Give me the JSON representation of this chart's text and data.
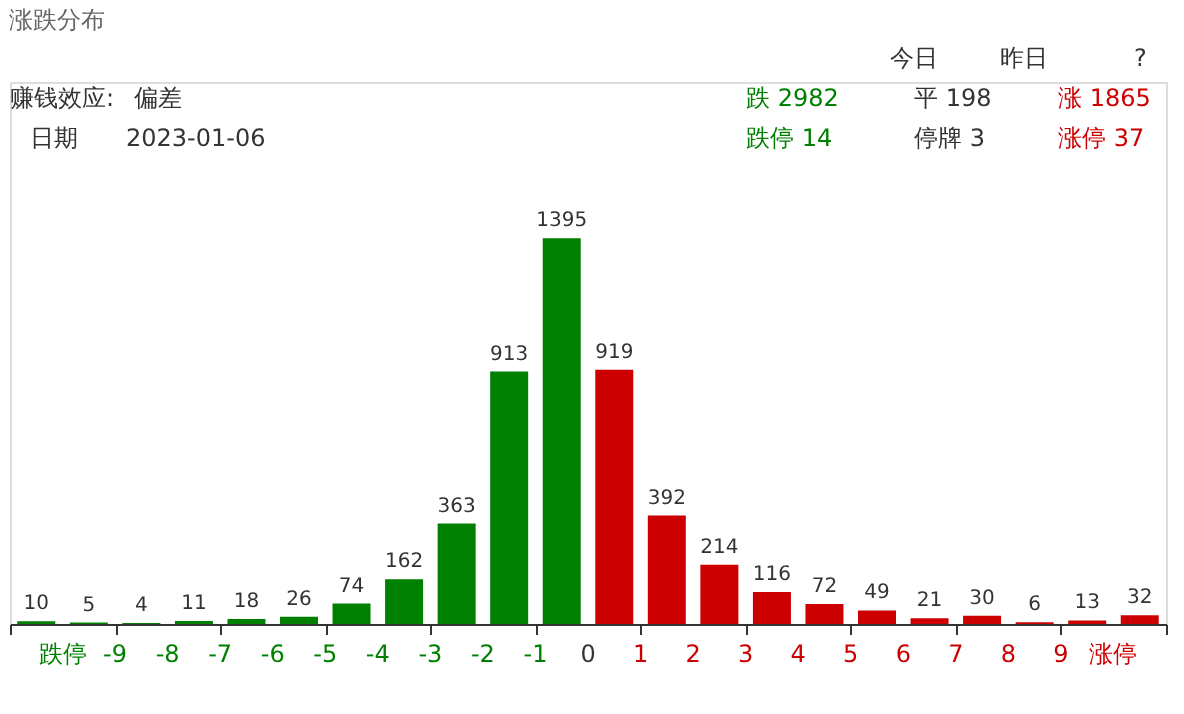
{
  "chart_data": {
    "type": "bar",
    "title": "涨跌分布",
    "annotations": [
      "今日",
      "昨日",
      "?",
      "赚钱效应:",
      "偏差",
      "日期",
      "2023-01-06",
      "跌 2982",
      "平 198",
      "涨 1865",
      "跌停 14",
      "停牌 3",
      "涨停 37"
    ],
    "x": [
      -10.5,
      -9.5,
      -8.5,
      -7.5,
      -6.5,
      -5.5,
      -4.5,
      -3.5,
      -2.5,
      -1.5,
      -0.5,
      0.5,
      1.5,
      2.5,
      3.5,
      4.5,
      5.5,
      6.5,
      7.5,
      8.5,
      9.5,
      10.5
    ],
    "values": [
      10,
      5,
      4,
      11,
      18,
      26,
      74,
      162,
      363,
      913,
      1395,
      919,
      392,
      214,
      116,
      72,
      49,
      21,
      30,
      6,
      13,
      32
    ],
    "colors": [
      "#008000",
      "#008000",
      "#008000",
      "#008000",
      "#008000",
      "#008000",
      "#008000",
      "#008000",
      "#008000",
      "#008000",
      "#008000",
      "#cc0000",
      "#cc0000",
      "#cc0000",
      "#cc0000",
      "#cc0000",
      "#cc0000",
      "#cc0000",
      "#cc0000",
      "#cc0000",
      "#cc0000",
      "#cc0000"
    ],
    "data_labels": true,
    "xlim": [
      -11,
      11
    ],
    "xticks": [
      {
        "value": -11,
        "label": null
      },
      {
        "value": -10,
        "label": "跌停"
      },
      -9,
      -8,
      -7,
      -6,
      -5,
      -4,
      -3,
      -2,
      -1,
      0,
      1,
      2,
      3,
      4,
      5,
      6,
      7,
      8,
      9,
      {
        "value": 10,
        "label": "涨停"
      },
      {
        "value": 11,
        "label": null
      }
    ],
    "ylim": [
      0,
      1960
    ],
    "tick_labels": "x",
    "grid": false
  }
}
